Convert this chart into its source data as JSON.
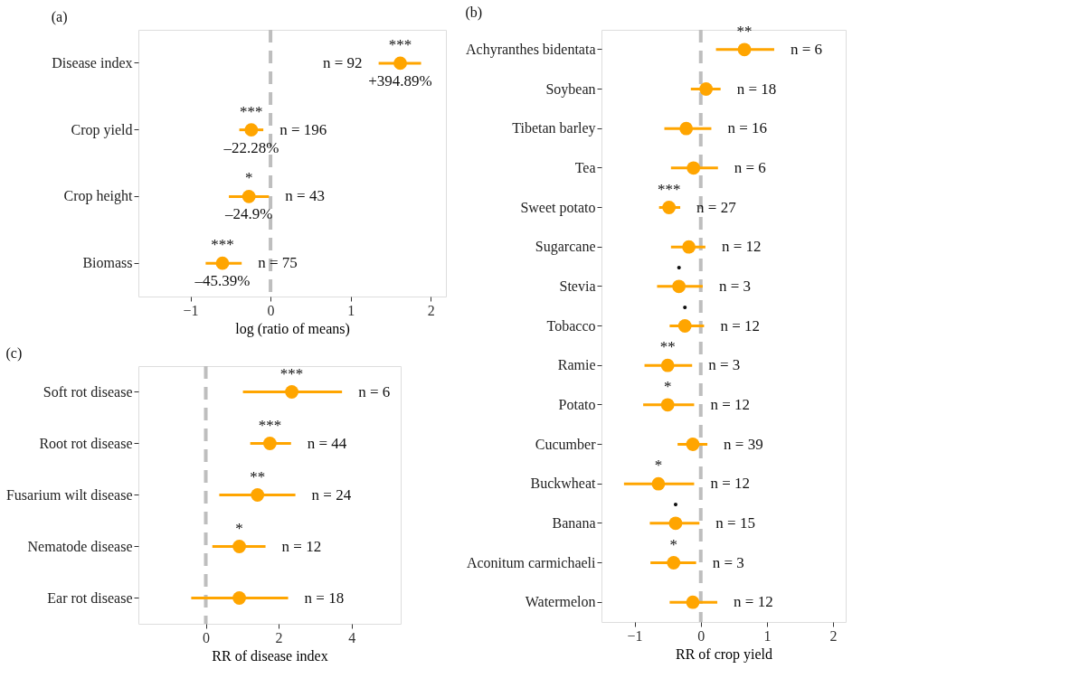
{
  "chart_data": [
    {
      "type": "scatter",
      "orientation": "horizontal",
      "title": "(a)",
      "xlabel": "log (ratio of means)",
      "marker": "circle",
      "grid": false,
      "categories": [
        "Disease index",
        "Crop yield",
        "Crop height",
        "Biomass"
      ],
      "series": [
        {
          "color": "#ffa500",
          "values": [
            1.62,
            -0.24,
            -0.27,
            -0.6
          ],
          "errors": [
            [
              1.35,
              1.88
            ],
            [
              -0.39,
              -0.09
            ],
            [
              -0.52,
              -0.02
            ],
            [
              -0.81,
              -0.36
            ]
          ]
        }
      ],
      "xlim": [
        -1.65,
        2.19
      ],
      "xticks": [
        -1,
        0,
        1,
        2
      ],
      "ref_lines": [
        {
          "axis": "x",
          "value": 0,
          "color": "#bebebe",
          "line_style": "dashed"
        }
      ],
      "annotations": [
        {
          "text": "***",
          "x": 1.62,
          "y": "Disease index"
        },
        {
          "text": "n = 92",
          "x": 1.35,
          "y": "Disease index"
        },
        {
          "text": "+394.89%",
          "x": 1.62,
          "y": "Disease index"
        },
        {
          "text": "***",
          "x": -0.24,
          "y": "Crop yield"
        },
        {
          "text": "n = 196",
          "x": -0.09,
          "y": "Crop yield"
        },
        {
          "text": "–22.28%",
          "x": -0.24,
          "y": "Crop yield"
        },
        {
          "text": "*",
          "x": -0.27,
          "y": "Crop height"
        },
        {
          "text": "n = 43",
          "x": -0.02,
          "y": "Crop height"
        },
        {
          "text": "–24.9%",
          "x": -0.27,
          "y": "Crop height"
        },
        {
          "text": "***",
          "x": -0.6,
          "y": "Biomass"
        },
        {
          "text": "n = 75",
          "x": -0.36,
          "y": "Biomass"
        },
        {
          "text": "–45.39%",
          "x": -0.6,
          "y": "Biomass"
        }
      ]
    },
    {
      "type": "scatter",
      "orientation": "horizontal",
      "title": "(b)",
      "xlabel": "RR of crop yield",
      "marker": "circle",
      "grid": false,
      "categories": [
        "Achyranthes bidentata",
        "Soybean",
        "Tibetan barley",
        "Tea",
        "Sweet potato",
        "Sugarcane",
        "Stevia",
        "Tobacco",
        "Ramie",
        "Potato",
        "Cucumber",
        "Buckwheat",
        "Banana",
        "Aconitum carmichaeli",
        "Watermelon"
      ],
      "series": [
        {
          "color": "#ffa500",
          "values": [
            0.66,
            0.08,
            -0.22,
            -0.11,
            -0.48,
            -0.18,
            -0.33,
            -0.24,
            -0.5,
            -0.5,
            -0.12,
            -0.64,
            -0.38,
            -0.41,
            -0.12
          ],
          "errors": [
            [
              0.23,
              1.11
            ],
            [
              -0.15,
              0.3
            ],
            [
              -0.55,
              0.16
            ],
            [
              -0.45,
              0.26
            ],
            [
              -0.63,
              -0.31
            ],
            [
              -0.45,
              0.07
            ],
            [
              -0.66,
              0.03
            ],
            [
              -0.47,
              0.05
            ],
            [
              -0.85,
              -0.13
            ],
            [
              -0.87,
              -0.1
            ],
            [
              -0.35,
              0.1
            ],
            [
              -1.16,
              -0.1
            ],
            [
              -0.77,
              -0.02
            ],
            [
              -0.76,
              -0.07
            ],
            [
              -0.47,
              0.25
            ]
          ]
        }
      ],
      "xlim": [
        -1.5,
        2.19
      ],
      "xticks": [
        -1,
        0,
        1,
        2
      ],
      "ref_lines": [
        {
          "axis": "x",
          "value": 0,
          "color": "#bebebe",
          "line_style": "dashed"
        }
      ],
      "annotations": [
        {
          "text": "**",
          "x": 0.66,
          "y": "Achyranthes bidentata"
        },
        {
          "text": "n = 6",
          "x": 1.11,
          "y": "Achyranthes bidentata"
        },
        {
          "text": "n = 18",
          "x": 0.3,
          "y": "Soybean"
        },
        {
          "text": "n = 16",
          "x": 0.16,
          "y": "Tibetan barley"
        },
        {
          "text": "n = 6",
          "x": 0.26,
          "y": "Tea"
        },
        {
          "text": "***",
          "x": -0.48,
          "y": "Sweet potato"
        },
        {
          "text": "n = 27",
          "x": -0.31,
          "y": "Sweet potato"
        },
        {
          "text": "n = 12",
          "x": 0.07,
          "y": "Sugarcane"
        },
        {
          "text": "•",
          "x": -0.33,
          "y": "Stevia"
        },
        {
          "text": "n = 3",
          "x": 0.03,
          "y": "Stevia"
        },
        {
          "text": "•",
          "x": -0.24,
          "y": "Tobacco"
        },
        {
          "text": "n = 12",
          "x": 0.05,
          "y": "Tobacco"
        },
        {
          "text": "**",
          "x": -0.5,
          "y": "Ramie"
        },
        {
          "text": "n = 3",
          "x": -0.13,
          "y": "Ramie"
        },
        {
          "text": "*",
          "x": -0.5,
          "y": "Potato"
        },
        {
          "text": "n = 12",
          "x": -0.1,
          "y": "Potato"
        },
        {
          "text": "n = 39",
          "x": 0.1,
          "y": "Cucumber"
        },
        {
          "text": "*",
          "x": -0.64,
          "y": "Buckwheat"
        },
        {
          "text": "n = 12",
          "x": -0.1,
          "y": "Buckwheat"
        },
        {
          "text": "•",
          "x": -0.38,
          "y": "Banana"
        },
        {
          "text": "n = 15",
          "x": -0.02,
          "y": "Banana"
        },
        {
          "text": "*",
          "x": -0.41,
          "y": "Aconitum carmichaeli"
        },
        {
          "text": "n = 3",
          "x": -0.07,
          "y": "Aconitum carmichaeli"
        },
        {
          "text": "n = 12",
          "x": 0.25,
          "y": "Watermelon"
        }
      ]
    },
    {
      "type": "scatter",
      "orientation": "horizontal",
      "title": "(c)",
      "xlabel": "RR of disease index",
      "marker": "circle",
      "grid": false,
      "categories": [
        "Soft rot disease",
        "Root rot disease",
        "Fusarium wilt disease",
        "Nematode disease",
        "Ear rot disease"
      ],
      "series": [
        {
          "color": "#ffa500",
          "values": [
            2.36,
            1.76,
            1.42,
            0.92,
            0.92
          ],
          "errors": [
            [
              1.02,
              3.74
            ],
            [
              1.22,
              2.34
            ],
            [
              0.37,
              2.46
            ],
            [
              0.18,
              1.64
            ],
            [
              -0.4,
              2.26
            ]
          ]
        }
      ],
      "xlim": [
        -1.85,
        5.35
      ],
      "xticks": [
        0,
        2,
        4
      ],
      "ref_lines": [
        {
          "axis": "x",
          "value": 0,
          "color": "#bebebe",
          "line_style": "dashed"
        }
      ],
      "annotations": [
        {
          "text": "***",
          "x": 2.36,
          "y": "Soft rot disease"
        },
        {
          "text": "n = 6",
          "x": 3.74,
          "y": "Soft rot disease"
        },
        {
          "text": "***",
          "x": 1.76,
          "y": "Root rot disease"
        },
        {
          "text": "n = 44",
          "x": 2.34,
          "y": "Root rot disease"
        },
        {
          "text": "**",
          "x": 1.42,
          "y": "Fusarium wilt disease"
        },
        {
          "text": "n = 24",
          "x": 2.46,
          "y": "Fusarium wilt disease"
        },
        {
          "text": "*",
          "x": 0.92,
          "y": "Nematode disease"
        },
        {
          "text": "n = 12",
          "x": 1.64,
          "y": "Nematode disease"
        },
        {
          "text": "n = 18",
          "x": 2.26,
          "y": "Ear rot disease"
        }
      ]
    }
  ]
}
